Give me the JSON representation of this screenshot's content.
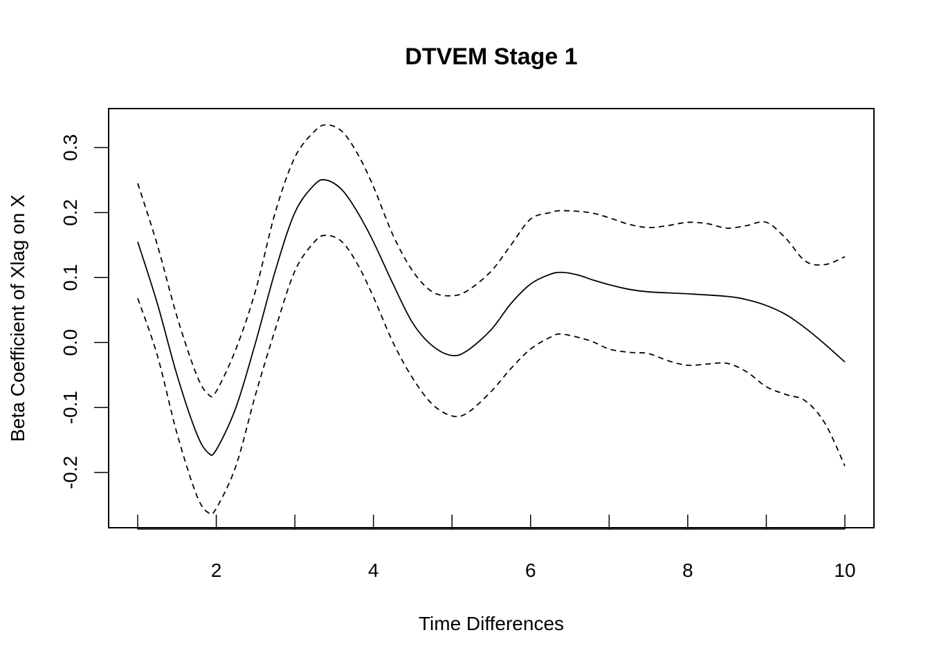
{
  "chart_data": {
    "type": "line",
    "title": "DTVEM Stage 1",
    "xlabel": "Time Differences",
    "ylabel": "Beta Coefficient of Xlag on X",
    "xlim": [
      0.63,
      10.37
    ],
    "ylim": [
      -0.285,
      0.36
    ],
    "x_ticks": [
      1,
      2,
      3,
      4,
      5,
      6,
      7,
      8,
      9,
      10
    ],
    "x_tick_labels": [
      "",
      "2",
      "",
      "4",
      "",
      "6",
      "",
      "8",
      "",
      "10"
    ],
    "y_ticks": [
      -0.2,
      -0.1,
      0.0,
      0.1,
      0.2,
      0.3
    ],
    "y_tick_labels": [
      "-0.2",
      "-0.1",
      "0.0",
      "0.1",
      "0.2",
      "0.3"
    ],
    "grid": false,
    "line_color": "#000000",
    "series": [
      {
        "style": "solid",
        "x": [
          1.0,
          1.25,
          1.5,
          1.75,
          1.9,
          2.0,
          2.25,
          2.5,
          2.75,
          3.0,
          3.25,
          3.4,
          3.6,
          3.8,
          4.0,
          4.25,
          4.5,
          4.75,
          5.0,
          5.2,
          5.5,
          5.75,
          6.0,
          6.25,
          6.4,
          6.6,
          6.8,
          7.0,
          7.25,
          7.5,
          8.0,
          8.5,
          8.75,
          9.0,
          9.25,
          9.5,
          9.75,
          10.0
        ],
        "y": [
          0.155,
          0.06,
          -0.05,
          -0.14,
          -0.17,
          -0.165,
          -0.1,
          0.0,
          0.11,
          0.2,
          0.243,
          0.25,
          0.235,
          0.2,
          0.155,
          0.09,
          0.03,
          -0.005,
          -0.02,
          -0.012,
          0.02,
          0.06,
          0.09,
          0.105,
          0.108,
          0.104,
          0.096,
          0.089,
          0.082,
          0.078,
          0.075,
          0.071,
          0.066,
          0.057,
          0.043,
          0.022,
          -0.003,
          -0.03
        ]
      },
      {
        "style": "dashed",
        "x": [
          1.0,
          1.25,
          1.5,
          1.75,
          1.9,
          2.0,
          2.25,
          2.5,
          2.75,
          3.0,
          3.25,
          3.4,
          3.6,
          3.8,
          4.0,
          4.25,
          4.5,
          4.75,
          5.0,
          5.2,
          5.5,
          5.75,
          6.0,
          6.25,
          6.4,
          6.75,
          7.0,
          7.25,
          7.5,
          7.75,
          8.0,
          8.25,
          8.5,
          8.75,
          9.0,
          9.25,
          9.5,
          9.75,
          10.0
        ],
        "y": [
          0.245,
          0.15,
          0.04,
          -0.05,
          -0.08,
          -0.075,
          -0.01,
          0.08,
          0.2,
          0.285,
          0.325,
          0.335,
          0.325,
          0.29,
          0.24,
          0.165,
          0.11,
          0.078,
          0.072,
          0.08,
          0.11,
          0.15,
          0.19,
          0.2,
          0.203,
          0.2,
          0.192,
          0.182,
          0.177,
          0.18,
          0.185,
          0.183,
          0.176,
          0.18,
          0.185,
          0.16,
          0.125,
          0.12,
          0.132
        ]
      },
      {
        "style": "dashed",
        "x": [
          1.0,
          1.25,
          1.5,
          1.75,
          1.9,
          2.0,
          2.25,
          2.5,
          2.75,
          3.0,
          3.25,
          3.4,
          3.6,
          3.8,
          4.0,
          4.25,
          4.5,
          4.75,
          5.0,
          5.2,
          5.5,
          5.75,
          6.0,
          6.25,
          6.4,
          6.75,
          7.0,
          7.25,
          7.5,
          7.75,
          8.0,
          8.25,
          8.5,
          8.75,
          9.0,
          9.25,
          9.5,
          9.75,
          10.0
        ],
        "y": [
          0.068,
          -0.02,
          -0.14,
          -0.235,
          -0.262,
          -0.255,
          -0.19,
          -0.08,
          0.02,
          0.11,
          0.155,
          0.165,
          0.155,
          0.12,
          0.07,
          0.0,
          -0.055,
          -0.095,
          -0.113,
          -0.108,
          -0.075,
          -0.04,
          -0.01,
          0.008,
          0.013,
          0.003,
          -0.01,
          -0.015,
          -0.017,
          -0.028,
          -0.035,
          -0.033,
          -0.032,
          -0.045,
          -0.068,
          -0.08,
          -0.09,
          -0.125,
          -0.19
        ]
      }
    ]
  }
}
